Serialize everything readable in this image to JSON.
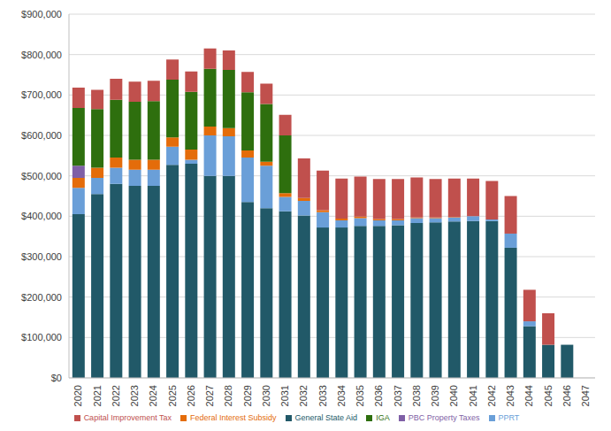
{
  "chart_data": {
    "type": "bar",
    "stacked": true,
    "grid": true,
    "legend": "bottom",
    "categories": [
      "2020",
      "2021",
      "2022",
      "2023",
      "2024",
      "2025",
      "2026",
      "2027",
      "2028",
      "2029",
      "2030",
      "2031",
      "2032",
      "2033",
      "2034",
      "2035",
      "2036",
      "2037",
      "2038",
      "2039",
      "2040",
      "2041",
      "2042",
      "2043",
      "2044",
      "2045",
      "2046",
      "2047"
    ],
    "ylim": [
      0,
      900000
    ],
    "yticks": [
      {
        "value": 0,
        "label": "$0"
      },
      {
        "value": 100000,
        "label": "$100,000"
      },
      {
        "value": 200000,
        "label": "$200,000"
      },
      {
        "value": 300000,
        "label": "$300,000"
      },
      {
        "value": 400000,
        "label": "$400,000"
      },
      {
        "value": 500000,
        "label": "$500,000"
      },
      {
        "value": 600000,
        "label": "$600,000"
      },
      {
        "value": 700000,
        "label": "$700,000"
      },
      {
        "value": 800000,
        "label": "$800,000"
      },
      {
        "value": 900000,
        "label": "$900,000"
      }
    ],
    "series": [
      {
        "name": "General State Aid",
        "color": "#215968",
        "values": [
          405000,
          455000,
          480000,
          475000,
          475000,
          527000,
          530000,
          500000,
          500000,
          435000,
          420000,
          412000,
          402000,
          372000,
          372000,
          376000,
          376000,
          378000,
          383000,
          385000,
          387000,
          388000,
          388000,
          322000,
          128000,
          82000,
          82000,
          0
        ]
      },
      {
        "name": "PPRT",
        "color": "#6a9fd8",
        "values": [
          65000,
          40000,
          40000,
          40000,
          40000,
          45000,
          10000,
          100000,
          98000,
          110000,
          105000,
          36000,
          36000,
          38000,
          18000,
          19000,
          14000,
          12000,
          12000,
          10000,
          10000,
          12000,
          4000,
          35000,
          12000,
          0,
          0,
          0
        ]
      },
      {
        "name": "Federal Interest Subsidy",
        "color": "#e46c0a",
        "values": [
          25000,
          25000,
          25000,
          25000,
          25000,
          23000,
          25000,
          22000,
          20000,
          18000,
          10000,
          9000,
          7000,
          5000,
          4000,
          4000,
          3000,
          3000,
          2000,
          2000,
          1000,
          0,
          0,
          0,
          0,
          0,
          0,
          0
        ]
      },
      {
        "name": "PBC Property Taxes",
        "color": "#7f5fa6",
        "values": [
          30000,
          0,
          0,
          0,
          0,
          0,
          0,
          0,
          0,
          0,
          0,
          0,
          0,
          0,
          0,
          0,
          0,
          0,
          0,
          0,
          0,
          0,
          0,
          0,
          0,
          0,
          0,
          0
        ]
      },
      {
        "name": "IGA",
        "color": "#2e6f0e",
        "values": [
          143000,
          145000,
          143000,
          143000,
          145000,
          143000,
          143000,
          143000,
          144000,
          144000,
          143000,
          143000,
          0,
          0,
          0,
          0,
          0,
          0,
          0,
          0,
          0,
          0,
          0,
          0,
          0,
          0,
          0,
          0
        ]
      },
      {
        "name": "Capital Improvement Tax",
        "color": "#c0504d",
        "values": [
          50000,
          48000,
          52000,
          50000,
          50000,
          50000,
          50000,
          50000,
          48000,
          50000,
          50000,
          51000,
          98000,
          98000,
          99000,
          99000,
          99000,
          99000,
          99000,
          95000,
          95000,
          93000,
          95000,
          93000,
          78000,
          78000,
          0,
          0
        ]
      }
    ]
  }
}
